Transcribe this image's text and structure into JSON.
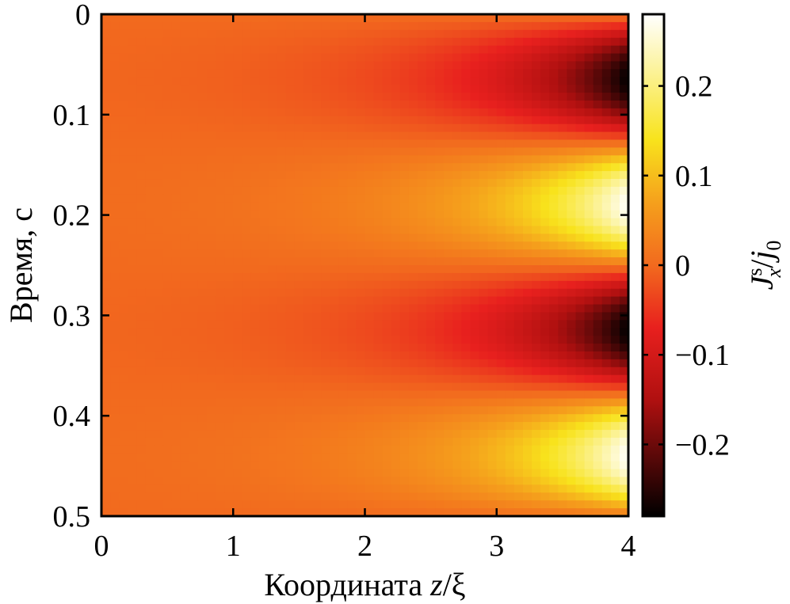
{
  "chart_data": {
    "type": "heatmap",
    "title": "",
    "xlabel": "Координата z/ξ",
    "ylabel": "Время, с",
    "colorbar_label": "Jxs/j0",
    "colorbar_label_parts": {
      "main": "J",
      "sup": "s",
      "sub": "x",
      "slash": "/",
      "main2": "j",
      "sub2": "0"
    },
    "xlabel_parts": {
      "text": "Координата ",
      "var": "z",
      "rest": "/ξ"
    },
    "xlim": [
      0,
      4
    ],
    "ylim": [
      0,
      0.5
    ],
    "y_inverted": true,
    "x_ticks": [
      {
        "value": 0,
        "label": "0"
      },
      {
        "value": 1,
        "label": "1"
      },
      {
        "value": 2,
        "label": "2"
      },
      {
        "value": 3,
        "label": "3"
      },
      {
        "value": 4,
        "label": "4"
      }
    ],
    "y_ticks": [
      {
        "value": 0,
        "label": "0"
      },
      {
        "value": 0.1,
        "label": "0.1"
      },
      {
        "value": 0.2,
        "label": "0.2"
      },
      {
        "value": 0.3,
        "label": "0.3"
      },
      {
        "value": 0.4,
        "label": "0.4"
      },
      {
        "value": 0.5,
        "label": "0.5"
      }
    ],
    "colorbar": {
      "range": [
        -0.28,
        0.28
      ],
      "ticks": [
        {
          "value": 0.2,
          "label": "0.2"
        },
        {
          "value": 0.1,
          "label": "0.1"
        },
        {
          "value": 0,
          "label": "0"
        },
        {
          "value": -0.1,
          "label": "−0.1"
        },
        {
          "value": -0.2,
          "label": "−0.2"
        }
      ],
      "colormap": "hot",
      "colormap_stops": [
        {
          "value": -0.28,
          "color": "#000000"
        },
        {
          "value": -0.15,
          "color": "#b01010"
        },
        {
          "value": -0.07,
          "color": "#e8201e"
        },
        {
          "value": 0.0,
          "color": "#f26a1e"
        },
        {
          "value": 0.07,
          "color": "#f5a01c"
        },
        {
          "value": 0.14,
          "color": "#f8e31c"
        },
        {
          "value": 0.28,
          "color": "#ffffff"
        }
      ]
    },
    "field": {
      "description_values": "Current oscillates in time with period ~0.25 s; amplitude grows along z",
      "amplitude_at_z4": 0.28,
      "period_s": 0.25,
      "max_times_s": [
        0.19,
        0.44
      ],
      "min_times_s": [
        0.065,
        0.315
      ],
      "decay_length": 0.9
    },
    "grid": false,
    "legend": "none"
  }
}
